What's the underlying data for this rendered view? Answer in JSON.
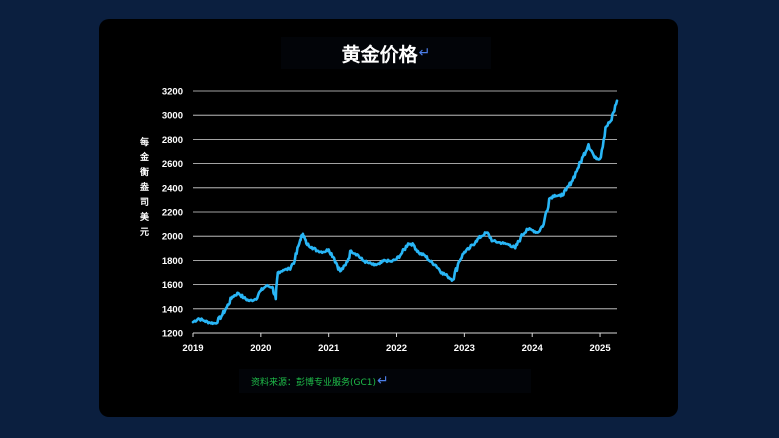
{
  "chart_data": {
    "type": "line",
    "title": "黄金价格",
    "ylabel": "每金衡盎司美元",
    "source": "资料来源：彭博专业服务(GC1)",
    "ylim": [
      1200,
      3200
    ],
    "yticks": [
      1200,
      1400,
      1600,
      1800,
      2000,
      2200,
      2400,
      2600,
      2800,
      3000,
      3200
    ],
    "xticks": [
      "2019",
      "2020",
      "2021",
      "2022",
      "2023",
      "2024",
      "2025"
    ],
    "xlim": [
      2019.0,
      2025.25
    ],
    "grid": true,
    "line_color": "#29b6f6",
    "series": [
      {
        "x": [
          2019.0,
          2019.08,
          2019.17,
          2019.25,
          2019.33,
          2019.42,
          2019.5,
          2019.58,
          2019.67,
          2019.75,
          2019.83,
          2019.92,
          2020.0,
          2020.08,
          2020.17,
          2020.22,
          2020.25,
          2020.33,
          2020.42,
          2020.5,
          2020.58,
          2020.62,
          2020.67,
          2020.75,
          2020.83,
          2020.92,
          2021.0,
          2021.08,
          2021.17,
          2021.25,
          2021.33,
          2021.42,
          2021.5,
          2021.58,
          2021.67,
          2021.75,
          2021.83,
          2021.92,
          2022.0,
          2022.08,
          2022.17,
          2022.25,
          2022.33,
          2022.42,
          2022.5,
          2022.58,
          2022.67,
          2022.75,
          2022.83,
          2022.92,
          2023.0,
          2023.08,
          2023.17,
          2023.25,
          2023.33,
          2023.42,
          2023.5,
          2023.58,
          2023.67,
          2023.75,
          2023.83,
          2023.92,
          2024.0,
          2024.08,
          2024.17,
          2024.25,
          2024.33,
          2024.42,
          2024.5,
          2024.58,
          2024.67,
          2024.75,
          2024.83,
          2024.92,
          2025.0,
          2025.08,
          2025.17,
          2025.25
        ],
        "y": [
          1290,
          1320,
          1300,
          1285,
          1280,
          1340,
          1415,
          1500,
          1530,
          1490,
          1465,
          1480,
          1550,
          1590,
          1580,
          1480,
          1700,
          1720,
          1730,
          1800,
          1970,
          2020,
          1940,
          1910,
          1880,
          1870,
          1890,
          1820,
          1710,
          1760,
          1880,
          1850,
          1800,
          1780,
          1760,
          1770,
          1800,
          1790,
          1810,
          1860,
          1940,
          1930,
          1860,
          1840,
          1790,
          1760,
          1700,
          1670,
          1640,
          1790,
          1870,
          1900,
          1960,
          2000,
          2030,
          1960,
          1950,
          1940,
          1930,
          1900,
          1990,
          2060,
          2050,
          2030,
          2100,
          2310,
          2340,
          2330,
          2380,
          2450,
          2560,
          2660,
          2760,
          2650,
          2640,
          2900,
          2960,
          3120
        ]
      }
    ]
  }
}
